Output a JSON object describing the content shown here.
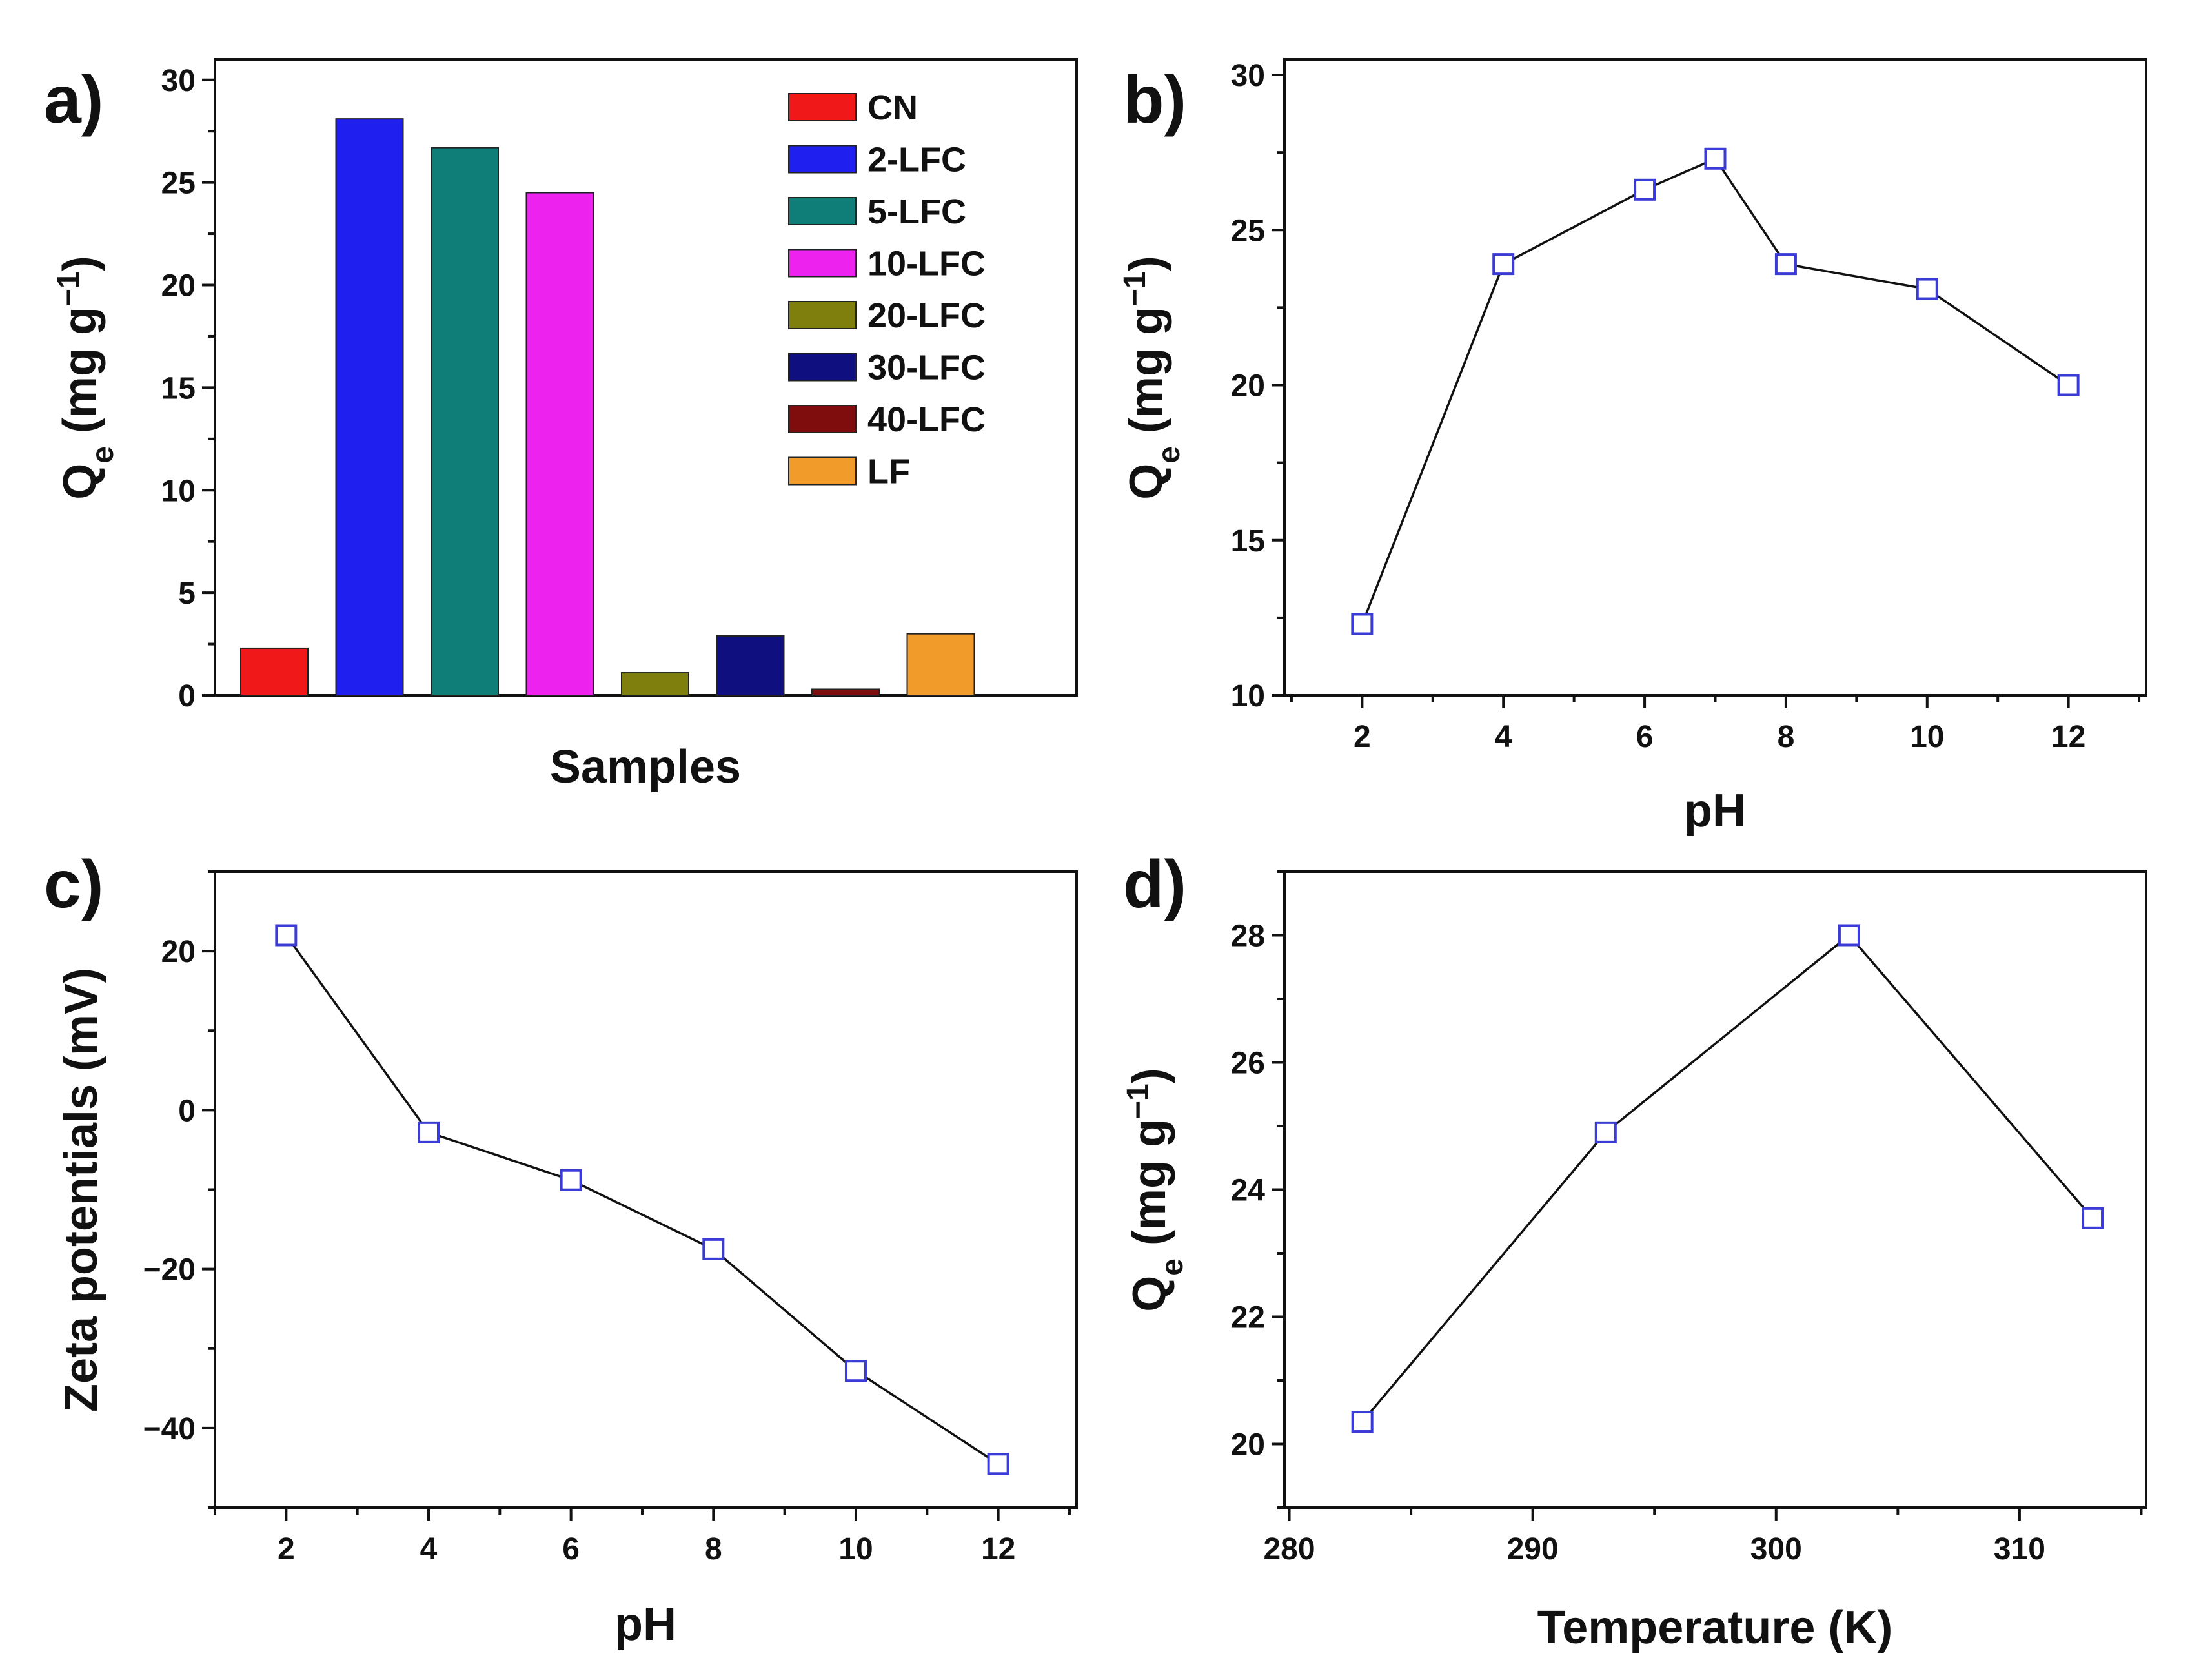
{
  "chart_data": [
    {
      "panel": "a)",
      "type": "bar",
      "xlabel": "Samples",
      "ylabel": "Q_e (mg g^-1)",
      "ylim": [
        0,
        31
      ],
      "yticks": [
        0,
        5,
        10,
        15,
        20,
        25,
        30
      ],
      "categories": [
        "CN",
        "2-LFC",
        "5-LFC",
        "10-LFC",
        "20-LFC",
        "30-LFC",
        "40-LFC",
        "LF"
      ],
      "values": [
        2.3,
        28.1,
        26.7,
        24.5,
        1.1,
        2.9,
        0.3,
        3.0
      ],
      "colors": [
        "#f01818",
        "#1f1fef",
        "#0f7d78",
        "#ee22ee",
        "#7f7f0d",
        "#0f0f80",
        "#800d0d",
        "#f09b2a"
      ],
      "legend_position": "top-right"
    },
    {
      "panel": "b)",
      "type": "line",
      "xlabel": "pH",
      "ylabel": "Q_e (mg g^-1)",
      "xlim": [
        0.9,
        13.1
      ],
      "ylim": [
        10,
        30.5
      ],
      "xticks": [
        2,
        4,
        6,
        8,
        10,
        12
      ],
      "yticks": [
        10,
        15,
        20,
        25,
        30
      ],
      "x": [
        2,
        4,
        6,
        7,
        8,
        10,
        12
      ],
      "y": [
        12.3,
        23.9,
        26.3,
        27.3,
        23.9,
        23.1,
        20.0
      ]
    },
    {
      "panel": "c)",
      "type": "line",
      "xlabel": "pH",
      "ylabel": "Zeta potentials (mV)",
      "xlim": [
        1.0,
        13.1
      ],
      "ylim": [
        -50,
        30
      ],
      "xticks": [
        2,
        4,
        6,
        8,
        10,
        12
      ],
      "yticks": [
        -40,
        -20,
        0,
        20
      ],
      "x": [
        2,
        4,
        6,
        8,
        10,
        12
      ],
      "y": [
        22.0,
        -2.8,
        -8.8,
        -17.5,
        -32.8,
        -44.5
      ]
    },
    {
      "panel": "d)",
      "type": "line",
      "xlabel": "Temperature (K)",
      "ylabel": "Q_e (mg g^-1)",
      "xlim": [
        279.8,
        315.2
      ],
      "ylim": [
        19,
        29
      ],
      "xticks": [
        280,
        290,
        300,
        310
      ],
      "yticks": [
        20,
        22,
        24,
        26,
        28
      ],
      "x": [
        283,
        293,
        303,
        313
      ],
      "y": [
        20.35,
        24.9,
        28.0,
        23.55
      ]
    }
  ]
}
